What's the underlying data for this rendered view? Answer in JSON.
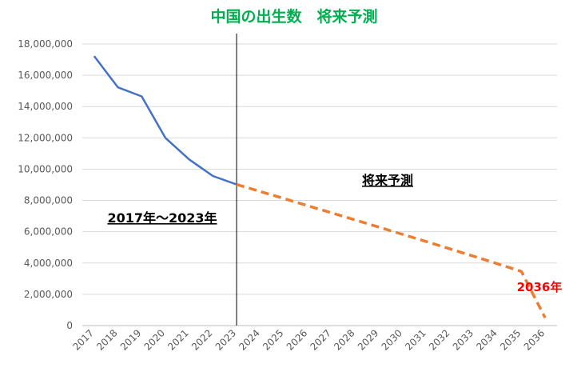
{
  "chart_data": {
    "type": "line",
    "title": "中国の出生数　将来予測",
    "title_color": "#00b050",
    "x": [
      "2017",
      "2018",
      "2019",
      "2020",
      "2021",
      "2022",
      "2023",
      "2024",
      "2025",
      "2026",
      "2027",
      "2028",
      "2029",
      "2030",
      "2031",
      "2032",
      "2033",
      "2034",
      "2035",
      "2036"
    ],
    "series": [
      {
        "values": [
          17230000,
          15230000,
          14650000,
          12000000,
          10620000,
          9560000,
          9020000,
          null,
          null,
          null,
          null,
          null,
          null,
          null,
          null,
          null,
          null,
          null,
          null,
          null
        ],
        "color": "#4472c4",
        "style": "solid"
      },
      {
        "values": [
          null,
          null,
          null,
          null,
          null,
          null,
          9020000,
          8570000,
          8120000,
          7660000,
          7210000,
          6750000,
          6290000,
          5830000,
          5370000,
          4900000,
          4430000,
          3950000,
          3460000,
          500000
        ],
        "color": "#ed7d31",
        "style": "dashed"
      }
    ],
    "yticks": [
      "0",
      "2,000,000",
      "4,000,000",
      "6,000,000",
      "8,000,000",
      "10,000,000",
      "12,000,000",
      "14,000,000",
      "16,000,000",
      "18,000,000"
    ],
    "ylim": [
      0,
      18000000
    ],
    "grid": true,
    "divider_at": "2023",
    "annotations": {
      "past": "2017年～2023年",
      "future": "将来予測",
      "end": "2036年",
      "end_color": "#ff0000"
    }
  }
}
